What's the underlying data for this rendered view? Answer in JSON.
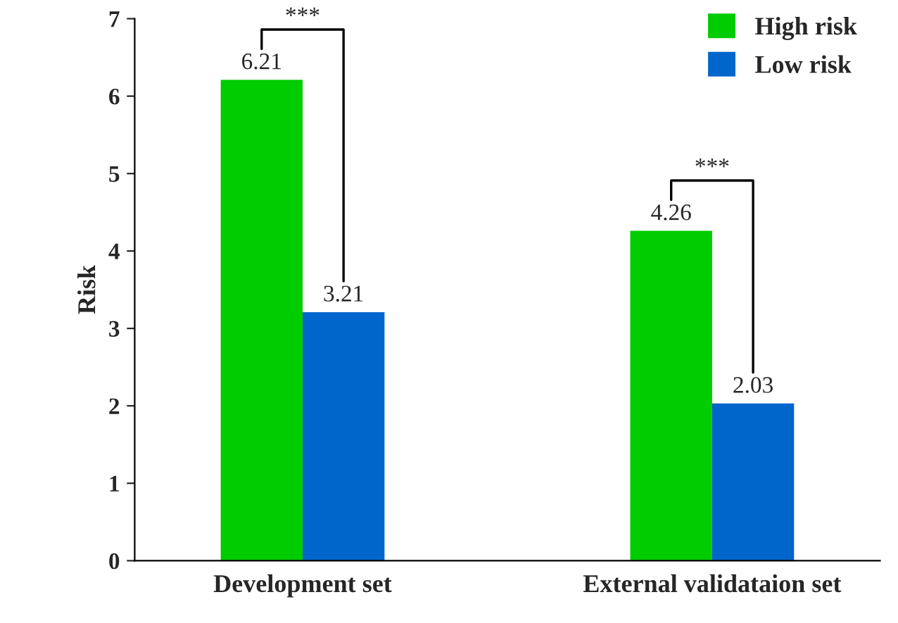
{
  "chart_data": {
    "type": "bar",
    "ylabel": "Risk",
    "categories": [
      "Development set",
      "External validataion set"
    ],
    "series": [
      {
        "name": "High risk",
        "color": "#00cc00",
        "values": [
          6.21,
          4.26
        ]
      },
      {
        "name": "Low risk",
        "color": "#0066cc",
        "values": [
          3.21,
          2.03
        ]
      }
    ],
    "ylim": [
      0,
      7
    ],
    "yticks": [
      0,
      1,
      2,
      3,
      4,
      5,
      6,
      7
    ],
    "data_labels": true,
    "legend": "top right",
    "grid": false,
    "annotations": [
      "***",
      "***"
    ]
  }
}
